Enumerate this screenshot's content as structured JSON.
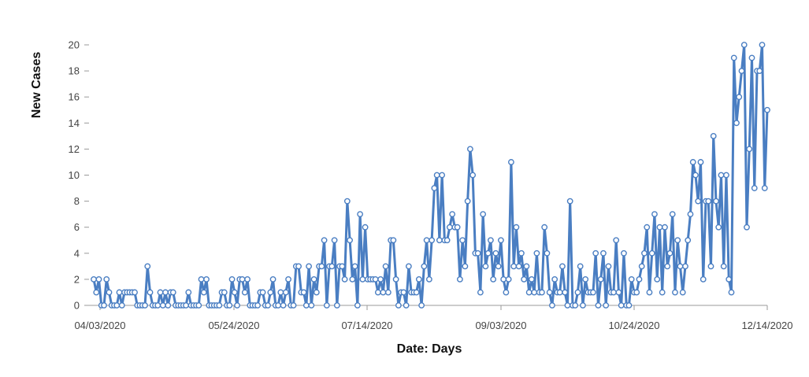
{
  "chart_data": {
    "type": "line",
    "xlabel": "Date: Days",
    "ylabel": "New Cases",
    "x_start": "04/03/2020",
    "x_end": "12/14/2020",
    "x_tick_labels": [
      "04/03/2020",
      "05/24/2020",
      "07/14/2020",
      "09/03/2020",
      "10/24/2020",
      "12/14/2020"
    ],
    "y_ticks": [
      0,
      2,
      4,
      6,
      8,
      10,
      12,
      14,
      16,
      18,
      20
    ],
    "ylim": [
      0,
      20
    ],
    "grid": false,
    "color": "#4a7ec2",
    "marker_fill": "#ffffff",
    "values": [
      2,
      1,
      2,
      0,
      0,
      2,
      1,
      0,
      0,
      0,
      1,
      0,
      1,
      1,
      1,
      1,
      1,
      0,
      0,
      0,
      0,
      3,
      1,
      0,
      0,
      0,
      1,
      0,
      1,
      0,
      1,
      1,
      0,
      0,
      0,
      0,
      0,
      1,
      0,
      0,
      0,
      0,
      2,
      1,
      2,
      0,
      0,
      0,
      0,
      0,
      1,
      1,
      0,
      0,
      2,
      1,
      0,
      2,
      2,
      1,
      2,
      0,
      0,
      0,
      0,
      1,
      1,
      0,
      0,
      1,
      2,
      0,
      0,
      1,
      0,
      1,
      2,
      0,
      0,
      3,
      3,
      1,
      1,
      0,
      3,
      0,
      2,
      1,
      3,
      3,
      5,
      0,
      3,
      3,
      5,
      0,
      3,
      3,
      2,
      8,
      5,
      2,
      3,
      0,
      7,
      2,
      6,
      2,
      2,
      2,
      2,
      1,
      2,
      1,
      3,
      1,
      5,
      5,
      2,
      0,
      1,
      1,
      0,
      3,
      1,
      1,
      1,
      2,
      0,
      3,
      5,
      2,
      5,
      9,
      10,
      5,
      10,
      5,
      5,
      6,
      7,
      6,
      6,
      2,
      5,
      3,
      8,
      12,
      10,
      4,
      4,
      1,
      7,
      3,
      4,
      5,
      2,
      4,
      3,
      5,
      2,
      1,
      2,
      11,
      3,
      6,
      3,
      4,
      2,
      3,
      1,
      2,
      1,
      4,
      1,
      1,
      6,
      4,
      1,
      0,
      2,
      1,
      1,
      3,
      1,
      0,
      8,
      0,
      0,
      1,
      3,
      0,
      2,
      1,
      1,
      1,
      4,
      0,
      2,
      4,
      0,
      3,
      1,
      1,
      5,
      1,
      0,
      4,
      0,
      0,
      2,
      1,
      1,
      2,
      3,
      4,
      6,
      1,
      4,
      7,
      2,
      6,
      1,
      6,
      3,
      4,
      7,
      1,
      5,
      3,
      1,
      3,
      5,
      7,
      11,
      10,
      8,
      11,
      2,
      8,
      8,
      3,
      13,
      8,
      6,
      10,
      3,
      10,
      2,
      1,
      19,
      14,
      16,
      18,
      20,
      6,
      12,
      19,
      9,
      18,
      18,
      20,
      9,
      15
    ]
  }
}
